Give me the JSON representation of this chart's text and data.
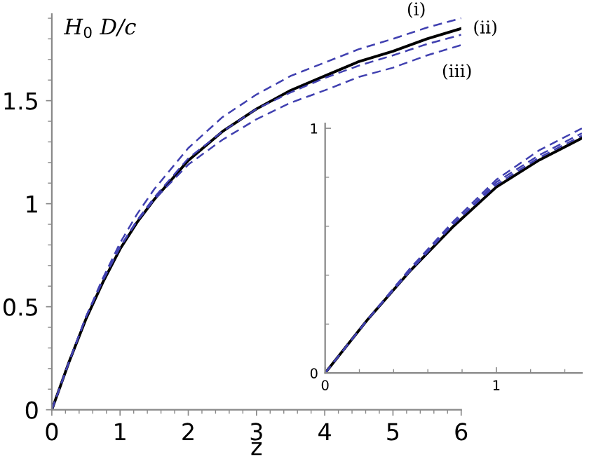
{
  "chart_data": [
    {
      "type": "line",
      "xlabel": "z",
      "ylabel": "H$_{0}$ D/c",
      "xlim": [
        0,
        6
      ],
      "ylim": [
        0,
        1.92
      ],
      "xticks": [
        0,
        1,
        2,
        3,
        4,
        5,
        6
      ],
      "yticks": [
        0,
        0.5,
        1,
        1.5
      ],
      "grid": false,
      "legend": false,
      "x": [
        0,
        0.25,
        0.5,
        0.75,
        1,
        1.25,
        1.5,
        2,
        2.5,
        3,
        3.5,
        4,
        4.5,
        5,
        5.5,
        6
      ],
      "series": [
        {
          "name": "(i)",
          "color": "#4040b0",
          "line_style": "dashed",
          "values": [
            0,
            0.23,
            0.45,
            0.64,
            0.81,
            0.95,
            1.07,
            1.27,
            1.42,
            1.53,
            1.62,
            1.685,
            1.75,
            1.8,
            1.855,
            1.9
          ]
        },
        {
          "name": "(ii)",
          "color": "#000000",
          "line_style": "solid",
          "values": [
            0,
            0.23,
            0.44,
            0.62,
            0.78,
            0.91,
            1.02,
            1.21,
            1.35,
            1.46,
            1.55,
            1.62,
            1.69,
            1.74,
            1.8,
            1.85
          ]
        },
        {
          "color": "#4040b0",
          "line_style": "dashed",
          "values": [
            0,
            0.23,
            0.45,
            0.63,
            0.79,
            0.92,
            1.03,
            1.22,
            1.35,
            1.46,
            1.54,
            1.61,
            1.67,
            1.72,
            1.775,
            1.82
          ]
        },
        {
          "name": "(iii)",
          "color": "#4040b0",
          "line_style": "dashed",
          "values": [
            0,
            0.23,
            0.45,
            0.63,
            0.79,
            0.915,
            1.02,
            1.19,
            1.31,
            1.41,
            1.49,
            1.55,
            1.615,
            1.66,
            1.72,
            1.77
          ]
        }
      ]
    },
    {
      "type": "line",
      "xlim": [
        0,
        1.5
      ],
      "ylim": [
        0,
        1.02
      ],
      "xticks": [
        0,
        1
      ],
      "yticks": [
        0,
        1
      ],
      "grid": false,
      "legend": false,
      "x": [
        0,
        0.25,
        0.5,
        0.75,
        1,
        1.25,
        1.5
      ],
      "series": [
        {
          "color": "#4040b0",
          "line_style": "dashed",
          "values": [
            0,
            0.22,
            0.43,
            0.62,
            0.79,
            0.91,
            1.0
          ]
        },
        {
          "color": "#000000",
          "line_style": "solid",
          "values": [
            0,
            0.22,
            0.42,
            0.6,
            0.76,
            0.87,
            0.96
          ]
        },
        {
          "color": "#4040b0",
          "line_style": "dashed",
          "values": [
            0,
            0.22,
            0.43,
            0.61,
            0.78,
            0.89,
            0.98
          ]
        },
        {
          "color": "#4040b0",
          "line_style": "dashed",
          "values": [
            0,
            0.22,
            0.42,
            0.61,
            0.77,
            0.88,
            0.97
          ]
        }
      ]
    }
  ]
}
